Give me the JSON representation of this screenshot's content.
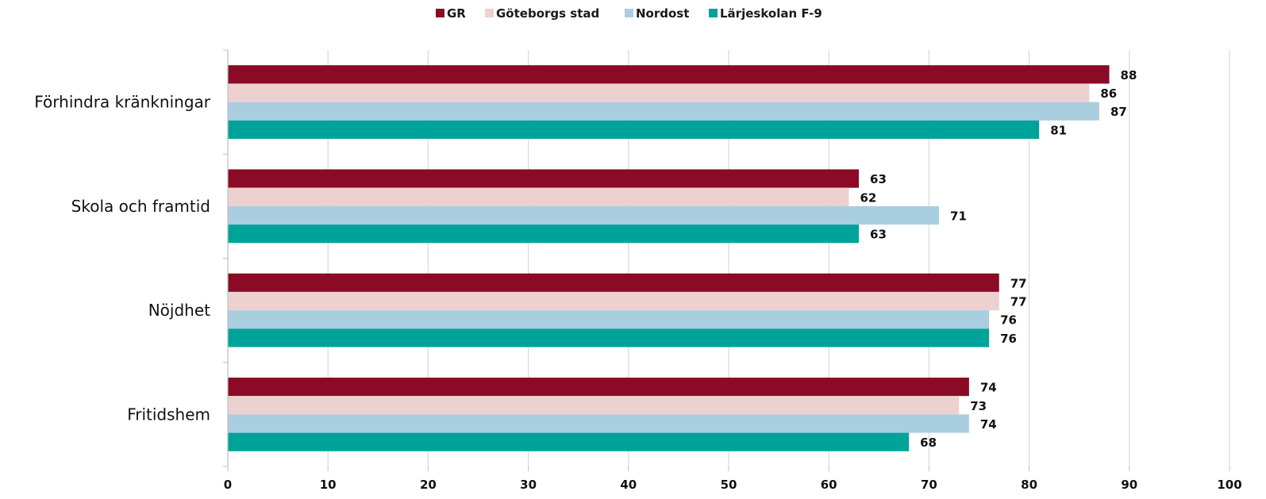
{
  "chart_data": {
    "type": "bar",
    "orientation": "horizontal",
    "categories": [
      "Förhindra kränkningar",
      "Skola och framtid",
      "Nöjdhet",
      "Fritidshem"
    ],
    "series": [
      {
        "name": "GR",
        "color": "#8B0A25",
        "values": [
          88,
          63,
          77,
          74
        ],
        "data_labels": [
          "88",
          "63",
          "77",
          "74"
        ]
      },
      {
        "name": "Göteborgs stad",
        "color": "#EDD0D0",
        "values": [
          86,
          62,
          77,
          73
        ],
        "data_labels": [
          "86",
          "62",
          "77",
          "73"
        ]
      },
      {
        "name": "Nordost",
        "color": "#A9CEE0",
        "values": [
          87,
          71,
          76,
          74
        ],
        "data_labels": [
          "87",
          "71",
          "76",
          "74"
        ]
      },
      {
        "name": "Lärjeskolan F-9",
        "color": "#00A39A",
        "values": [
          81,
          63,
          76,
          68
        ],
        "data_labels": [
          "81",
          "63",
          "76",
          "68"
        ]
      }
    ],
    "xlim": [
      0,
      100
    ],
    "x_ticks": [
      "0",
      "10",
      "20",
      "30",
      "40",
      "50",
      "60",
      "70",
      "80",
      "90",
      "100"
    ],
    "grid": "vertical",
    "legend_position": "top-center",
    "title": "",
    "xlabel": "",
    "ylabel": ""
  }
}
